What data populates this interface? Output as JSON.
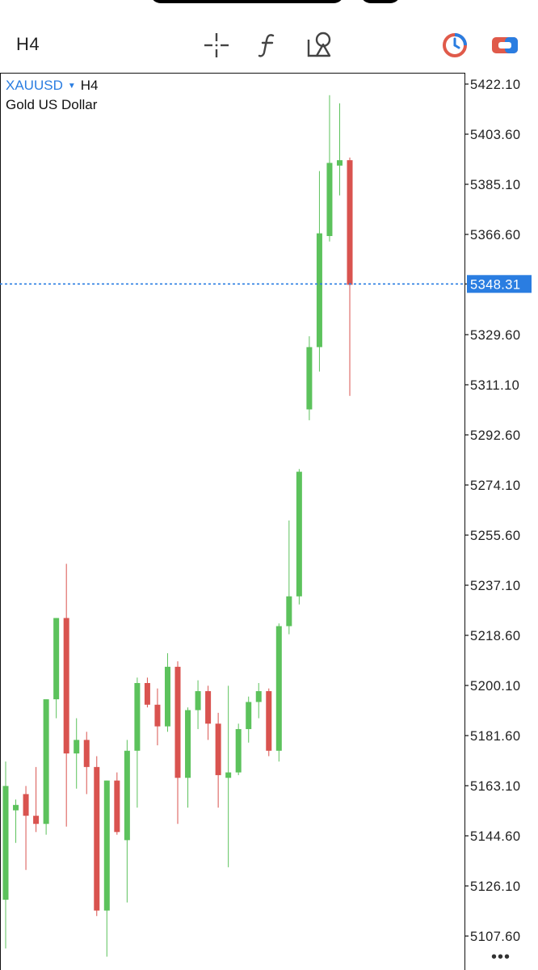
{
  "toolbar": {
    "timeframe": "H4",
    "icons": [
      "crosshair-icon",
      "function-icon",
      "objects-icon",
      "clock-icon",
      "trade-icon"
    ]
  },
  "symbol": {
    "name": "XAUUSD",
    "timeframe": "H4",
    "description": "Gold US Dollar"
  },
  "colors": {
    "bull": "#5cc25c",
    "bear": "#d9534f",
    "accent": "#2a7de1",
    "current_price_bg": "#2a7de1"
  },
  "chart_data": {
    "type": "candlestick",
    "y_ticks": [
      "5422.10",
      "5403.60",
      "5385.10",
      "5366.60",
      "5348.31",
      "5329.60",
      "5311.10",
      "5292.60",
      "5274.10",
      "5255.60",
      "5237.10",
      "5218.60",
      "5200.10",
      "5181.60",
      "5163.10",
      "5144.60",
      "5126.10",
      "5107.60"
    ],
    "current_price": "5348.31",
    "ylim": [
      5100,
      5426
    ],
    "grid": false,
    "candles": [
      {
        "o": 5121,
        "h": 5172,
        "l": 5103,
        "c": 5163
      },
      {
        "o": 5154,
        "h": 5158,
        "l": 5142,
        "c": 5156
      },
      {
        "o": 5160,
        "h": 5163,
        "l": 5132,
        "c": 5152
      },
      {
        "o": 5152,
        "h": 5170,
        "l": 5146,
        "c": 5149
      },
      {
        "o": 5149,
        "h": 5195,
        "l": 5145,
        "c": 5195
      },
      {
        "o": 5195,
        "h": 5225,
        "l": 5188,
        "c": 5225
      },
      {
        "o": 5225,
        "h": 5245,
        "l": 5148,
        "c": 5175
      },
      {
        "o": 5175,
        "h": 5188,
        "l": 5162,
        "c": 5180
      },
      {
        "o": 5180,
        "h": 5183,
        "l": 5160,
        "c": 5170
      },
      {
        "o": 5170,
        "h": 5174,
        "l": 5115,
        "c": 5117
      },
      {
        "o": 5117,
        "h": 5165,
        "l": 5100,
        "c": 5165
      },
      {
        "o": 5165,
        "h": 5168,
        "l": 5145,
        "c": 5146
      },
      {
        "o": 5143,
        "h": 5180,
        "l": 5120,
        "c": 5176
      },
      {
        "o": 5176,
        "h": 5203,
        "l": 5155,
        "c": 5201
      },
      {
        "o": 5201,
        "h": 5203,
        "l": 5192,
        "c": 5193
      },
      {
        "o": 5193,
        "h": 5199,
        "l": 5178,
        "c": 5185
      },
      {
        "o": 5185,
        "h": 5212,
        "l": 5183,
        "c": 5207
      },
      {
        "o": 5207,
        "h": 5209,
        "l": 5149,
        "c": 5166
      },
      {
        "o": 5166,
        "h": 5192,
        "l": 5155,
        "c": 5191
      },
      {
        "o": 5191,
        "h": 5202,
        "l": 5184,
        "c": 5198
      },
      {
        "o": 5198,
        "h": 5200,
        "l": 5180,
        "c": 5186
      },
      {
        "o": 5186,
        "h": 5190,
        "l": 5155,
        "c": 5167
      },
      {
        "o": 5166,
        "h": 5200,
        "l": 5133,
        "c": 5168
      },
      {
        "o": 5168,
        "h": 5186,
        "l": 5167,
        "c": 5184
      },
      {
        "o": 5184,
        "h": 5196,
        "l": 5179,
        "c": 5194
      },
      {
        "o": 5194,
        "h": 5201,
        "l": 5188,
        "c": 5198
      },
      {
        "o": 5198,
        "h": 5199,
        "l": 5174,
        "c": 5176
      },
      {
        "o": 5176,
        "h": 5223,
        "l": 5172,
        "c": 5222
      },
      {
        "o": 5222,
        "h": 5261,
        "l": 5219,
        "c": 5233
      },
      {
        "o": 5233,
        "h": 5280,
        "l": 5230,
        "c": 5279
      },
      {
        "o": 5302,
        "h": 5329,
        "l": 5298,
        "c": 5325
      },
      {
        "o": 5325,
        "h": 5390,
        "l": 5316,
        "c": 5367
      },
      {
        "o": 5366,
        "h": 5418,
        "l": 5364,
        "c": 5393
      },
      {
        "o": 5392,
        "h": 5415,
        "l": 5381,
        "c": 5394
      },
      {
        "o": 5394,
        "h": 5395,
        "l": 5307,
        "c": 5348
      }
    ]
  }
}
